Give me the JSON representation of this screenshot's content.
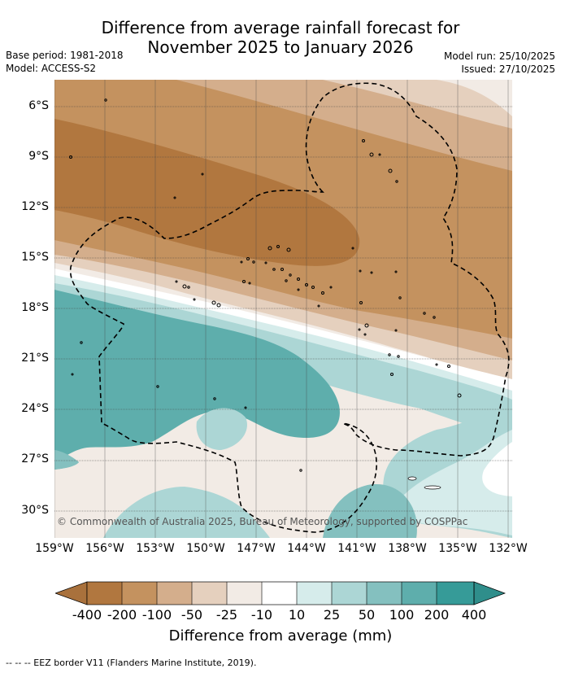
{
  "header": {
    "title_line1": "Difference from average rainfall forecast for",
    "title_line2": "November 2025 to January 2026",
    "base_period": "Base period: 1981-2018",
    "model": "Model: ACCESS-S2",
    "model_run": "Model run: 25/10/2025",
    "issued": "Issued: 27/10/2025"
  },
  "axes": {
    "latitudes": [
      "6°S",
      "9°S",
      "12°S",
      "15°S",
      "18°S",
      "21°S",
      "24°S",
      "27°S",
      "30°S"
    ],
    "longitudes": [
      "159°W",
      "156°W",
      "153°W",
      "150°W",
      "147°W",
      "144°W",
      "141°W",
      "138°W",
      "135°W",
      "132°W"
    ]
  },
  "map": {
    "copyright": "© Commonwealth of Australia 2025, Bureau of Meteorology, supported by COSPPac"
  },
  "colorbar": {
    "labels": [
      "-400",
      "-200",
      "-100",
      "-50",
      "-25",
      "-10",
      "10",
      "25",
      "50",
      "100",
      "200",
      "400"
    ],
    "colors": [
      "#a9713c",
      "#b1773f",
      "#c4925f",
      "#d4ae8c",
      "#e5d0be",
      "#f2ebe5",
      "#ffffff",
      "#d6eceb",
      "#acd6d5",
      "#84c0bf",
      "#5eaeac",
      "#369b98",
      "#2f8e8b"
    ],
    "title": "Difference from average (mm)"
  },
  "footer": {
    "eez_note": "--  --  -- EEZ border V11 (Flanders Marine Institute, 2019)."
  }
}
